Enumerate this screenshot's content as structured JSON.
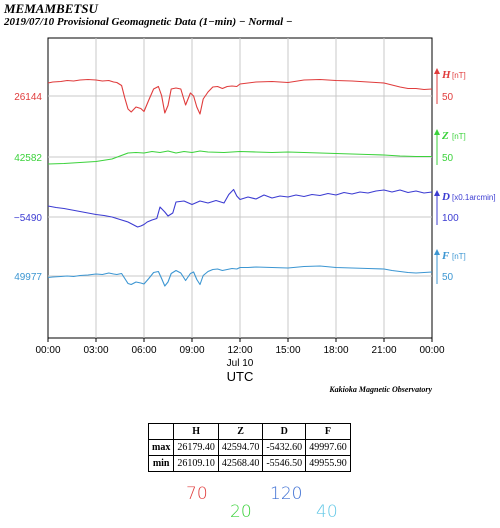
{
  "station": "MEMAMBETSU",
  "subtitle": "2019/07/10  Provisional Geomagnetic Data (1−min)  − Normal −",
  "observatory": "Kakioka Magnetic Observatory",
  "chart_data": {
    "type": "line",
    "xlabel": "UTC",
    "date_label": "Jul 10",
    "x_ticks": [
      "00:00",
      "03:00",
      "06:00",
      "09:00",
      "12:00",
      "15:00",
      "18:00",
      "21:00",
      "00:00"
    ],
    "grid": true,
    "series": [
      {
        "name": "H",
        "unit": "[nT]",
        "color": "#e03c3c",
        "left_label": "26144",
        "right_scale": "50",
        "x": [
          0,
          0.3,
          0.8,
          1.2,
          1.6,
          2.0,
          2.5,
          3.0,
          3.4,
          3.8,
          4.1,
          4.3,
          4.6,
          4.8,
          5.0,
          5.2,
          5.5,
          5.8,
          6.0,
          6.3,
          6.6,
          6.9,
          7.1,
          7.3,
          7.5,
          7.7,
          8.0,
          8.3,
          8.6,
          8.9,
          9.1,
          9.3,
          9.5,
          9.7,
          10.0,
          10.3,
          10.6,
          10.9,
          11.2,
          11.5,
          11.8,
          12.0,
          12.5,
          13.0,
          14.0,
          15.0,
          16.0,
          17.0,
          18.0,
          19.0,
          20.0,
          21.0,
          21.5,
          22.0,
          22.5,
          23.0,
          23.5,
          24.0
        ],
        "y": [
          26170,
          26172,
          26173,
          26175,
          26174,
          26176,
          26177,
          26176,
          26174,
          26175,
          26172,
          26171,
          26165,
          26140,
          26118,
          26112,
          26122,
          26119,
          26113,
          26136,
          26158,
          26163,
          26145,
          26110,
          26125,
          26158,
          26160,
          26158,
          26126,
          26150,
          26144,
          26122,
          26108,
          26138,
          26152,
          26162,
          26163,
          26159,
          26163,
          26164,
          26163,
          26168,
          26170,
          26172,
          26173,
          26171,
          26176,
          26177,
          26175,
          26174,
          26172,
          26170,
          26166,
          26162,
          26159,
          26159,
          26157,
          26158
        ]
      },
      {
        "name": "Z",
        "unit": "[nT]",
        "color": "#3cd23c",
        "left_label": "42582",
        "right_scale": "50",
        "x": [
          0,
          1,
          2,
          3,
          4,
          4.5,
          5,
          5.5,
          6,
          6.5,
          7,
          7.5,
          8,
          8.5,
          9,
          9.5,
          10,
          11,
          12,
          13,
          14,
          15,
          16,
          17,
          18,
          19,
          20,
          21,
          22,
          23,
          24
        ],
        "y": [
          42568,
          42569,
          42571,
          42573,
          42578,
          42584,
          42590,
          42591,
          42590,
          42593,
          42591,
          42594,
          42590,
          42593,
          42591,
          42594,
          42592,
          42591,
          42593,
          42592,
          42591,
          42592,
          42591,
          42590,
          42589,
          42588,
          42587,
          42586,
          42584,
          42583,
          42583
        ]
      },
      {
        "name": "D",
        "unit": "[x0.1arcmin]",
        "color": "#3c3cd2",
        "left_label": "−5490",
        "right_scale": "100",
        "x": [
          0,
          0.5,
          1.0,
          1.5,
          2.0,
          2.5,
          3.0,
          3.5,
          4.0,
          4.5,
          5.0,
          5.3,
          5.6,
          5.8,
          6.0,
          6.2,
          6.5,
          6.8,
          7.0,
          7.3,
          7.5,
          7.8,
          8.0,
          8.5,
          9.0,
          9.5,
          10.0,
          10.5,
          11.0,
          11.3,
          11.6,
          11.8,
          12.0,
          12.5,
          13.0,
          13.5,
          14.0,
          14.5,
          15.0,
          15.5,
          16.0,
          16.5,
          17.0,
          17.5,
          18.0,
          18.5,
          19.0,
          19.5,
          20.0,
          20.5,
          21.0,
          21.5,
          22.0,
          22.5,
          23.0,
          23.5,
          24.0
        ],
        "y": [
          -5468,
          -5471,
          -5473,
          -5476,
          -5479,
          -5482,
          -5485,
          -5487,
          -5490,
          -5495,
          -5500,
          -5505,
          -5510,
          -5508,
          -5505,
          -5500,
          -5496,
          -5493,
          -5470,
          -5480,
          -5488,
          -5482,
          -5460,
          -5458,
          -5465,
          -5458,
          -5462,
          -5457,
          -5462,
          -5445,
          -5435,
          -5448,
          -5455,
          -5450,
          -5454,
          -5446,
          -5452,
          -5448,
          -5450,
          -5446,
          -5449,
          -5445,
          -5447,
          -5443,
          -5446,
          -5441,
          -5444,
          -5440,
          -5442,
          -5438,
          -5436,
          -5440,
          -5436,
          -5441,
          -5438,
          -5442,
          -5440
        ]
      },
      {
        "name": "F",
        "unit": "[nT]",
        "color": "#3c96d2",
        "left_label": "49977",
        "right_scale": "50",
        "x": [
          0,
          0.3,
          0.8,
          1.2,
          1.6,
          2.0,
          2.5,
          3.0,
          3.4,
          3.8,
          4.1,
          4.3,
          4.6,
          4.8,
          5.0,
          5.2,
          5.5,
          5.8,
          6.0,
          6.3,
          6.6,
          6.9,
          7.1,
          7.3,
          7.5,
          7.7,
          8.0,
          8.3,
          8.6,
          8.9,
          9.1,
          9.3,
          9.5,
          9.7,
          10.0,
          10.3,
          10.6,
          10.9,
          11.2,
          11.5,
          11.8,
          12.0,
          12.5,
          13.0,
          14.0,
          15.0,
          16.0,
          17.0,
          18.0,
          19.0,
          20.0,
          21.0,
          21.5,
          22.0,
          22.5,
          23.0,
          23.5,
          24.0
        ],
        "y": [
          49974,
          49975,
          49976,
          49977,
          49976,
          49978,
          49979,
          49981,
          49980,
          49983,
          49981,
          49980,
          49982,
          49972,
          49962,
          49960,
          49965,
          49963,
          49961,
          49972,
          49984,
          49986,
          49972,
          49957,
          49965,
          49982,
          49988,
          49983,
          49968,
          49982,
          49985,
          49970,
          49960,
          49978,
          49986,
          49990,
          49991,
          49988,
          49990,
          49992,
          49991,
          49994,
          49994,
          49995,
          49994,
          49993,
          49996,
          49997,
          49994,
          49993,
          49992,
          49991,
          49988,
          49986,
          49984,
          49983,
          49984,
          49985
        ]
      }
    ],
    "stats_table": {
      "headers": [
        "",
        "H",
        "Z",
        "D",
        "F"
      ],
      "rows": [
        {
          "label": "max",
          "values": [
            "26179.40",
            "42594.70",
            "-5432.60",
            "49997.60"
          ]
        },
        {
          "label": "min",
          "values": [
            "26109.10",
            "42568.40",
            "-5546.50",
            "49955.90"
          ]
        }
      ]
    }
  },
  "handwritten": [
    {
      "text": "70",
      "color": "#e03c3c"
    },
    {
      "text": "20",
      "color": "#3cd23c"
    },
    {
      "text": "120",
      "color": "#3c6ed2"
    },
    {
      "text": "40",
      "color": "#64c8e6"
    }
  ]
}
